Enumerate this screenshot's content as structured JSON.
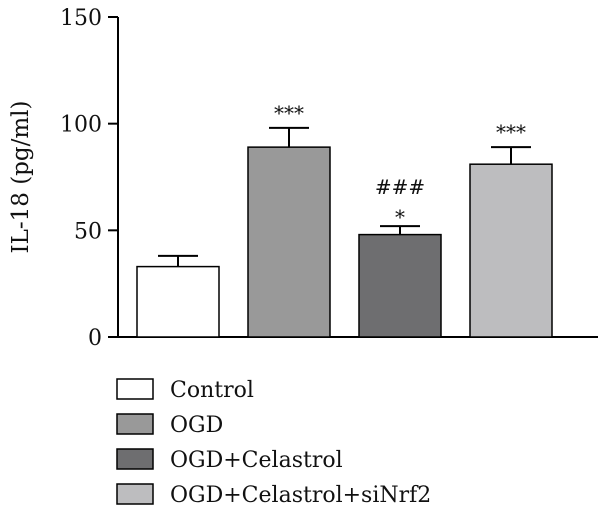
{
  "chart_data": {
    "type": "bar",
    "ylabel": "IL-18 (pg/ml)",
    "ylim": [
      0,
      150
    ],
    "yticks": [
      0,
      50,
      100,
      150
    ],
    "categories": [
      "Control",
      "OGD",
      "OGD+Celastrol",
      "OGD+Celastrol+siNrf2"
    ],
    "values": [
      33,
      89,
      48,
      81
    ],
    "errors": [
      5,
      9,
      4,
      8
    ],
    "annotations": [
      [],
      [
        "***"
      ],
      [
        "###",
        "*"
      ],
      [
        "***"
      ]
    ],
    "colors": [
      "#ffffff",
      "#999999",
      "#6e6e70",
      "#bdbdbf"
    ],
    "legend": {
      "position": "bottom-left",
      "entries": [
        "Control",
        "OGD",
        "OGD+Celastrol",
        "OGD+Celastrol+siNrf2"
      ]
    }
  }
}
